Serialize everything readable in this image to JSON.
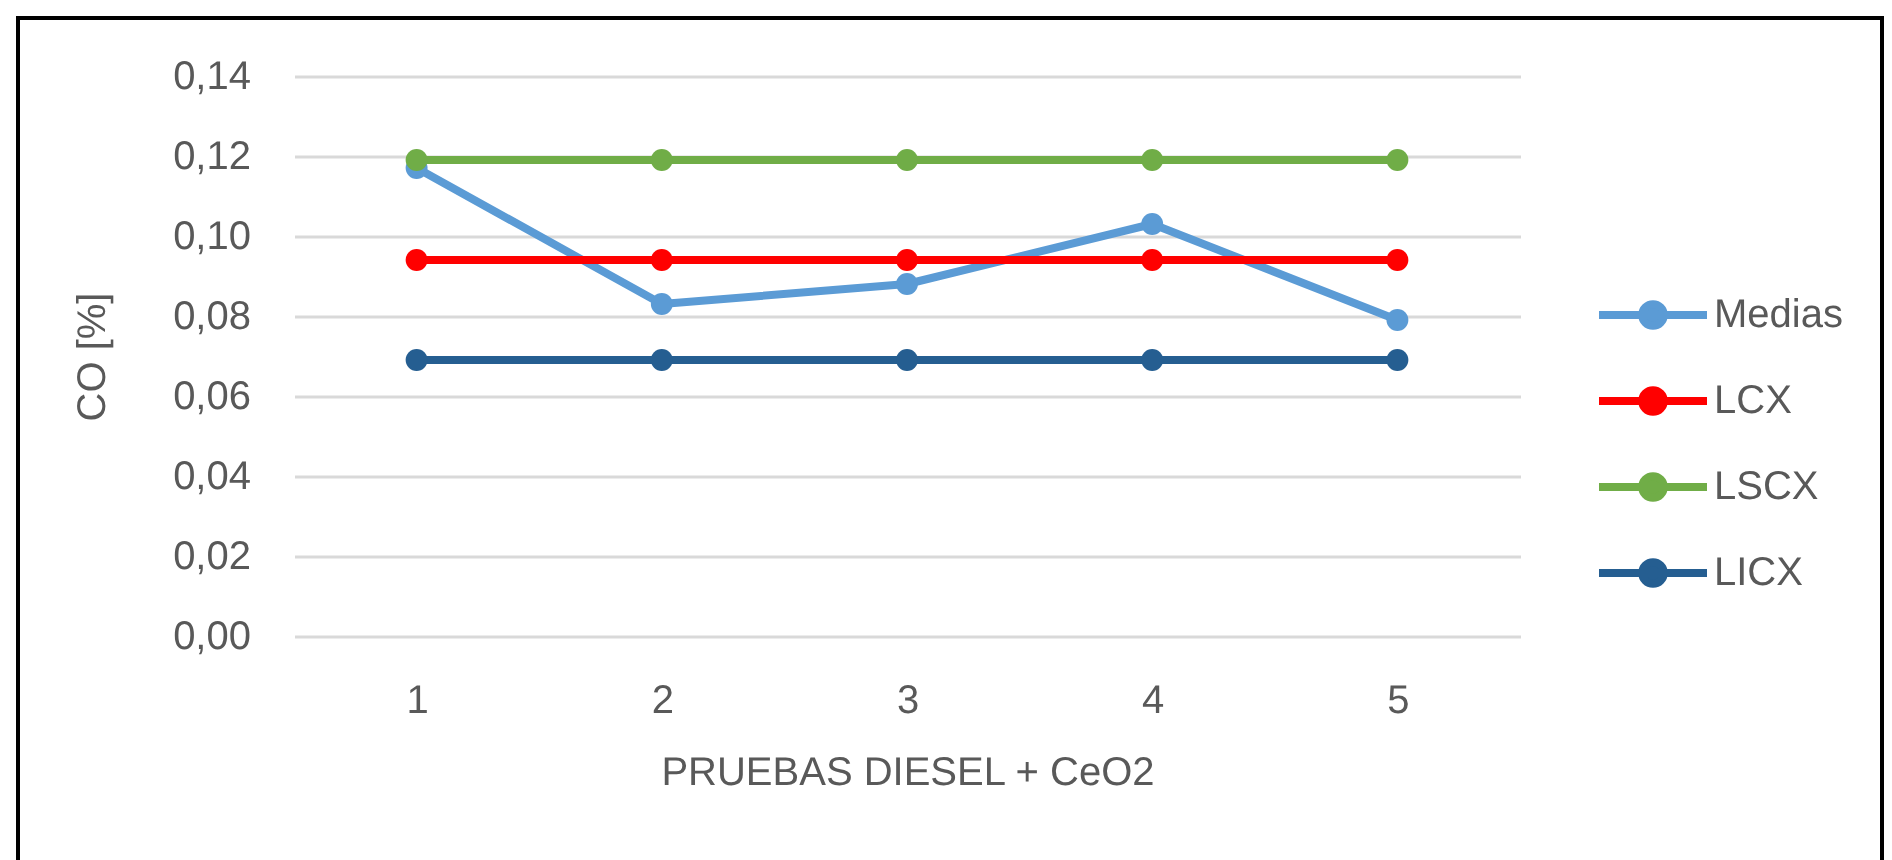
{
  "chart_data": {
    "type": "line",
    "xlabel": "PRUEBAS DIESEL + CeO2",
    "ylabel": "CO [%]",
    "categories": [
      "1",
      "2",
      "3",
      "4",
      "5"
    ],
    "series": [
      {
        "name": "Medias",
        "color": "#5b9bd5",
        "values": [
          0.117,
          0.083,
          0.088,
          0.103,
          0.079
        ]
      },
      {
        "name": "LCX",
        "color": "#ff0000",
        "values": [
          0.094,
          0.094,
          0.094,
          0.094,
          0.094
        ]
      },
      {
        "name": "LSCX",
        "color": "#70ad47",
        "values": [
          0.119,
          0.119,
          0.119,
          0.119,
          0.119
        ]
      },
      {
        "name": "LICX",
        "color": "#255e91",
        "values": [
          0.069,
          0.069,
          0.069,
          0.069,
          0.069
        ]
      }
    ],
    "ylim": [
      0,
      0.14
    ],
    "yticks": [
      {
        "value": 0,
        "label": "0,00"
      },
      {
        "value": 0.02,
        "label": "0,02"
      },
      {
        "value": 0.04,
        "label": "0,04"
      },
      {
        "value": 0.06,
        "label": "0,06"
      },
      {
        "value": 0.08,
        "label": "0,08"
      },
      {
        "value": 0.1,
        "label": "0,10"
      },
      {
        "value": 0.12,
        "label": "0,12"
      },
      {
        "value": 0.14,
        "label": "0,14"
      }
    ],
    "grid": "y",
    "legend": "right",
    "marker": "circle",
    "line_style": "solid"
  }
}
